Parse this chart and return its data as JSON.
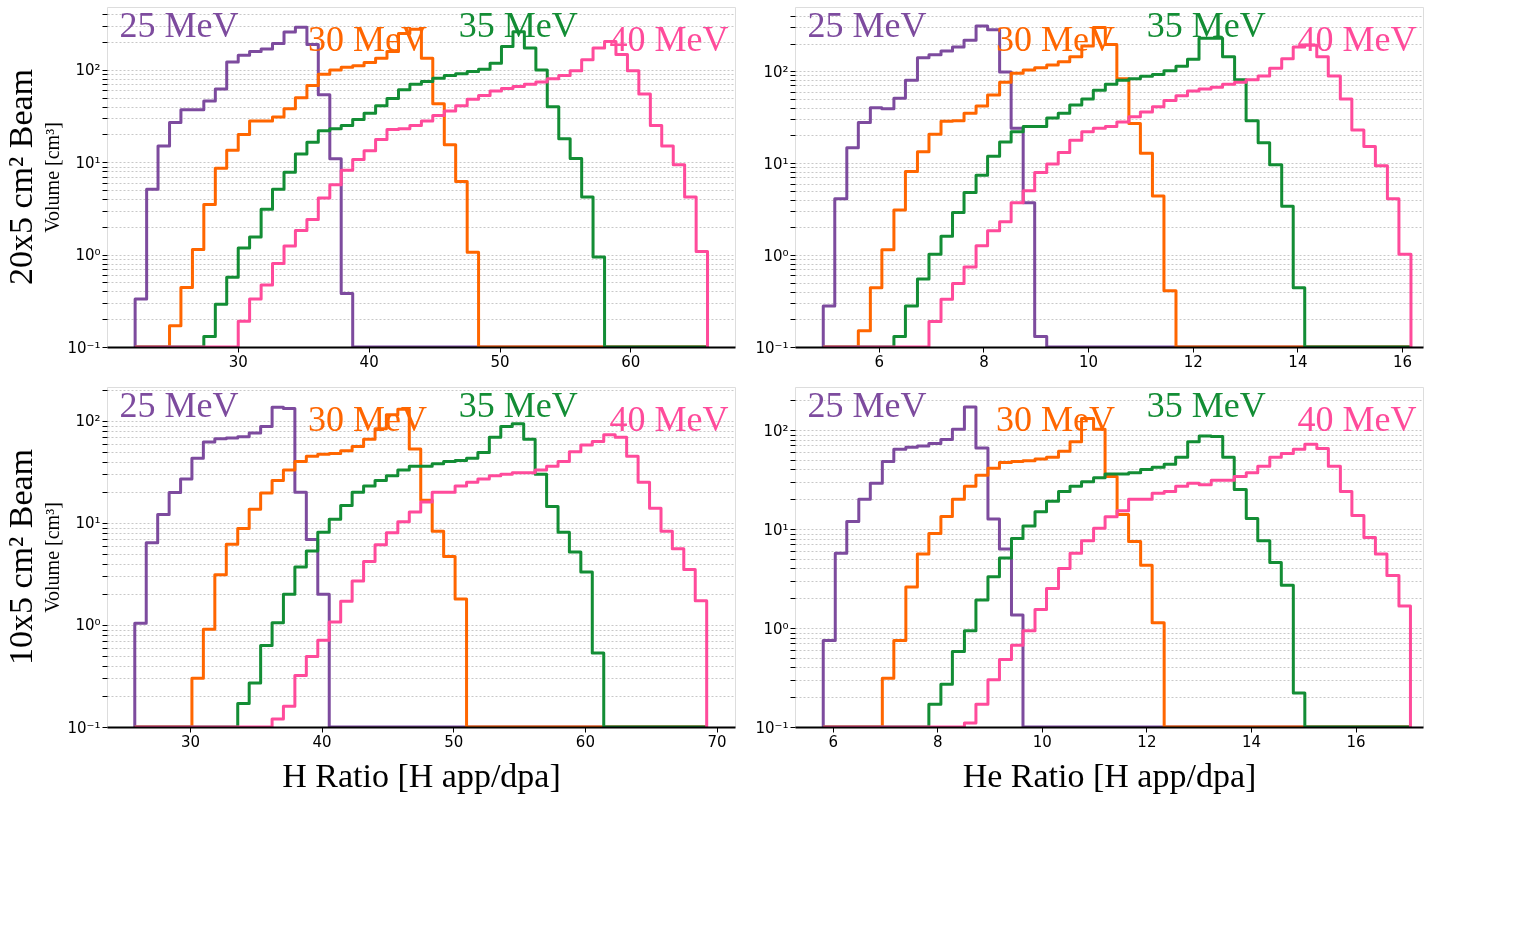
{
  "chart_data": [
    {
      "type": "histogram",
      "title": "20x5 cm² Beam",
      "ylabel": "Volume [cm³]",
      "log": true,
      "grid": "y",
      "line_style": "solid",
      "marker": "none",
      "xlim": [
        20,
        68
      ],
      "xticks": [
        30,
        40,
        50,
        60
      ],
      "ylim": [
        0.1,
        480
      ],
      "yticks": [
        {
          "value": 0.1,
          "label": "10⁻¹"
        },
        {
          "value": 0.2,
          "label": null
        },
        {
          "value": 0.3,
          "label": null
        },
        {
          "value": 0.4,
          "label": null
        },
        {
          "value": 0.5,
          "label": null
        },
        {
          "value": 0.6,
          "label": null
        },
        {
          "value": 0.7,
          "label": null
        },
        {
          "value": 0.8,
          "label": null
        },
        {
          "value": 0.9,
          "label": null
        },
        {
          "value": 1,
          "label": "10⁰"
        },
        {
          "value": 2,
          "label": null
        },
        {
          "value": 3,
          "label": null
        },
        {
          "value": 4,
          "label": null
        },
        {
          "value": 5,
          "label": null
        },
        {
          "value": 6,
          "label": null
        },
        {
          "value": 7,
          "label": null
        },
        {
          "value": 8,
          "label": null
        },
        {
          "value": 9,
          "label": null
        },
        {
          "value": 10,
          "label": "10¹"
        },
        {
          "value": 20,
          "label": null
        },
        {
          "value": 30,
          "label": null
        },
        {
          "value": 40,
          "label": null
        },
        {
          "value": 50,
          "label": null
        },
        {
          "value": 60,
          "label": null
        },
        {
          "value": 70,
          "label": null
        },
        {
          "value": 80,
          "label": null
        },
        {
          "value": 90,
          "label": null
        },
        {
          "value": 100,
          "label": "10²"
        },
        {
          "value": 200,
          "label": null
        },
        {
          "value": 300,
          "label": null
        },
        {
          "value": 400,
          "label": null
        }
      ],
      "bins": [
        22.15,
        23.03,
        23.9,
        24.78,
        25.65,
        26.53,
        27.4,
        28.28,
        29.15,
        30.03,
        30.9,
        31.78,
        32.65,
        33.53,
        34.4,
        35.28,
        36.15,
        37.03,
        37.9,
        38.78,
        39.65,
        40.53,
        41.4,
        42.28,
        43.15,
        44.03,
        44.9,
        45.78,
        46.65,
        47.53,
        48.4,
        49.28,
        50.15,
        51.03,
        51.9,
        52.78,
        53.65,
        54.53,
        55.4,
        56.28,
        57.15,
        58.03,
        58.9,
        59.78,
        60.65,
        61.53,
        62.4,
        63.28,
        64.15,
        65.03,
        65.9
      ],
      "series": [
        {
          "name": "25 MeV",
          "color": "#7d4b9e",
          "values": [
            0.33,
            5.1,
            15,
            27,
            37,
            37,
            46,
            62,
            122,
            144,
            158,
            168,
            193,
            258,
            290,
            189,
            54,
            10.9,
            0.38,
            null,
            null,
            null,
            null,
            null,
            null,
            null,
            null,
            null,
            null,
            null,
            null,
            null,
            null,
            null,
            null,
            null,
            null,
            null,
            null,
            null,
            null,
            null,
            null,
            null,
            null,
            null,
            null,
            null,
            null,
            null
          ]
        },
        {
          "name": "30 MeV",
          "color": "#ff6600",
          "values": [
            null,
            null,
            null,
            0.17,
            0.44,
            1.14,
            3.5,
            8.6,
            13.5,
            20,
            28,
            28,
            31,
            38,
            50,
            68,
            90,
            100,
            107,
            111,
            120,
            134,
            158,
            248,
            276,
            134,
            43,
            15.5,
            6.2,
            1.06,
            null,
            null,
            null,
            null,
            null,
            null,
            null,
            null,
            null,
            null,
            null,
            null,
            null,
            null,
            null,
            null,
            null,
            null,
            null,
            null
          ]
        },
        {
          "name": "35 MeV",
          "color": "#138d35",
          "values": [
            null,
            null,
            null,
            null,
            null,
            null,
            0.13,
            0.29,
            0.57,
            1.18,
            1.55,
            3.1,
            5.1,
            7.8,
            12.3,
            16.5,
            21.9,
            23,
            25,
            29,
            34,
            41,
            49,
            61,
            70,
            75,
            81,
            87,
            91,
            96,
            102,
            118,
            179,
            259,
            173,
            100,
            40,
            18,
            11,
            4.2,
            0.94,
            null,
            null,
            null,
            null,
            null,
            null,
            null,
            null,
            null
          ]
        },
        {
          "name": "40 MeV",
          "color": "#ff4b9b",
          "values": [
            null,
            null,
            null,
            null,
            null,
            null,
            null,
            null,
            null,
            0.19,
            0.33,
            0.47,
            0.8,
            1.24,
            1.82,
            2.4,
            4.1,
            5.7,
            8.2,
            10.7,
            13.3,
            17.7,
            22.7,
            23,
            25,
            28,
            32,
            36,
            41,
            48,
            53,
            59,
            63,
            66,
            70,
            74,
            80,
            87,
            98,
            129,
            173,
            203,
            147,
            98,
            55,
            25,
            15,
            9.4,
            4.2,
            1.08
          ]
        }
      ]
    },
    {
      "type": "histogram",
      "log": true,
      "grid": "y",
      "line_style": "solid",
      "marker": "none",
      "xlim": [
        4.4,
        16.4
      ],
      "xticks": [
        6,
        8,
        10,
        12,
        14,
        16
      ],
      "ylim": [
        0.1,
        500
      ],
      "yticks": [
        {
          "value": 0.1,
          "label": "10⁻¹"
        },
        {
          "value": 0.2,
          "label": null
        },
        {
          "value": 0.3,
          "label": null
        },
        {
          "value": 0.4,
          "label": null
        },
        {
          "value": 0.5,
          "label": null
        },
        {
          "value": 0.6,
          "label": null
        },
        {
          "value": 0.7,
          "label": null
        },
        {
          "value": 0.8,
          "label": null
        },
        {
          "value": 0.9,
          "label": null
        },
        {
          "value": 1,
          "label": "10⁰"
        },
        {
          "value": 2,
          "label": null
        },
        {
          "value": 3,
          "label": null
        },
        {
          "value": 4,
          "label": null
        },
        {
          "value": 5,
          "label": null
        },
        {
          "value": 6,
          "label": null
        },
        {
          "value": 7,
          "label": null
        },
        {
          "value": 8,
          "label": null
        },
        {
          "value": 9,
          "label": null
        },
        {
          "value": 10,
          "label": "10¹"
        },
        {
          "value": 20,
          "label": null
        },
        {
          "value": 30,
          "label": null
        },
        {
          "value": 40,
          "label": null
        },
        {
          "value": 50,
          "label": null
        },
        {
          "value": 60,
          "label": null
        },
        {
          "value": 70,
          "label": null
        },
        {
          "value": 80,
          "label": null
        },
        {
          "value": 90,
          "label": null
        },
        {
          "value": 100,
          "label": "10²"
        },
        {
          "value": 200,
          "label": null
        },
        {
          "value": 300,
          "label": null
        },
        {
          "value": 400,
          "label": null
        }
      ],
      "bins": [
        4.94,
        5.16,
        5.39,
        5.61,
        5.84,
        6.06,
        6.29,
        6.51,
        6.74,
        6.96,
        7.19,
        7.41,
        7.63,
        7.86,
        8.08,
        8.31,
        8.53,
        8.76,
        8.98,
        9.21,
        9.43,
        9.65,
        9.88,
        10.1,
        10.33,
        10.55,
        10.78,
        11.0,
        11.23,
        11.45,
        11.68,
        11.9,
        12.12,
        12.35,
        12.57,
        12.8,
        13.02,
        13.25,
        13.47,
        13.7,
        13.92,
        14.14,
        14.37,
        14.59,
        14.82,
        15.04,
        15.27,
        15.49,
        15.72,
        15.94,
        16.17
      ],
      "series": [
        {
          "name": "25 MeV",
          "color": "#7d4b9e",
          "values": [
            0.28,
            4.1,
            14.7,
            27.7,
            40,
            39,
            51,
            80,
            140,
            151,
            166,
            183,
            217,
            310,
            282,
            98,
            24,
            3.7,
            0.13,
            null,
            null,
            null,
            null,
            null,
            null,
            null,
            null,
            null,
            null,
            null,
            null,
            null,
            null,
            null,
            null,
            null,
            null,
            null,
            null,
            null,
            null,
            null,
            null,
            null,
            null,
            null,
            null,
            null,
            null,
            null
          ]
        },
        {
          "name": "30 MeV",
          "color": "#ff6600",
          "values": [
            null,
            null,
            null,
            0.15,
            0.44,
            1.14,
            3.1,
            8.1,
            13.3,
            20.6,
            28.5,
            29,
            35,
            42,
            55,
            76,
            95,
            103,
            109,
            117,
            127,
            144,
            188,
            300,
            196,
            83,
            27,
            12.8,
            4.4,
            0.41,
            null,
            null,
            null,
            null,
            null,
            null,
            null,
            null,
            null,
            null,
            null,
            null,
            null,
            null,
            null,
            null,
            null,
            null,
            null,
            null
          ]
        },
        {
          "name": "35 MeV",
          "color": "#138d35",
          "values": [
            null,
            null,
            null,
            null,
            null,
            null,
            0.13,
            0.28,
            0.55,
            1.02,
            1.6,
            2.9,
            4.8,
            7.4,
            11.9,
            17,
            22,
            25,
            25,
            31,
            35,
            43,
            50,
            62,
            72,
            80,
            83,
            88,
            92,
            101,
            113,
            135,
            228,
            228,
            144,
            81,
            29,
            16.7,
            9.6,
            3.4,
            0.44,
            null,
            null,
            null,
            null,
            null,
            null,
            null,
            null,
            null
          ]
        },
        {
          "name": "40 MeV",
          "color": "#ff4b9b",
          "values": [
            null,
            null,
            null,
            null,
            null,
            null,
            null,
            null,
            null,
            0.19,
            0.33,
            0.49,
            0.74,
            1.26,
            1.84,
            2.3,
            3.7,
            5.0,
            7.9,
            9.8,
            13.1,
            17.8,
            22,
            24,
            25,
            28,
            32,
            36,
            41,
            48,
            54,
            61,
            64,
            67,
            72,
            76,
            81,
            89,
            108,
            137,
            183,
            192,
            144,
            89,
            50,
            23,
            15.2,
            9.4,
            4.1,
            1.02
          ]
        }
      ]
    },
    {
      "type": "histogram",
      "title": "10x5 cm² Beam",
      "ylabel": "Volume [cm³]",
      "xlabel": "H Ratio [H app/dpa]",
      "log": true,
      "grid": "y",
      "line_style": "solid",
      "marker": "none",
      "xlim": [
        23.7,
        71.4
      ],
      "xticks": [
        30,
        40,
        50,
        60,
        70
      ],
      "ylim": [
        0.1,
        215
      ],
      "yticks": [
        {
          "value": 0.1,
          "label": "10⁻¹"
        },
        {
          "value": 0.2,
          "label": null
        },
        {
          "value": 0.3,
          "label": null
        },
        {
          "value": 0.4,
          "label": null
        },
        {
          "value": 0.5,
          "label": null
        },
        {
          "value": 0.6,
          "label": null
        },
        {
          "value": 0.7,
          "label": null
        },
        {
          "value": 0.8,
          "label": null
        },
        {
          "value": 0.9,
          "label": null
        },
        {
          "value": 1,
          "label": "10⁰"
        },
        {
          "value": 2,
          "label": null
        },
        {
          "value": 3,
          "label": null
        },
        {
          "value": 4,
          "label": null
        },
        {
          "value": 5,
          "label": null
        },
        {
          "value": 6,
          "label": null
        },
        {
          "value": 7,
          "label": null
        },
        {
          "value": 8,
          "label": null
        },
        {
          "value": 9,
          "label": null
        },
        {
          "value": 10,
          "label": "10¹"
        },
        {
          "value": 20,
          "label": null
        },
        {
          "value": 30,
          "label": null
        },
        {
          "value": 40,
          "label": null
        },
        {
          "value": 50,
          "label": null
        },
        {
          "value": 60,
          "label": null
        },
        {
          "value": 70,
          "label": null
        },
        {
          "value": 80,
          "label": null
        },
        {
          "value": 90,
          "label": null
        },
        {
          "value": 100,
          "label": "10²"
        },
        {
          "value": 200,
          "label": null
        }
      ],
      "bins": [
        25.81,
        26.68,
        27.55,
        28.42,
        29.29,
        30.15,
        31.02,
        31.89,
        32.76,
        33.63,
        34.5,
        35.37,
        36.24,
        37.1,
        37.97,
        38.84,
        39.71,
        40.58,
        41.45,
        42.32,
        43.19,
        44.06,
        44.92,
        45.79,
        46.66,
        47.53,
        48.4,
        49.27,
        50.14,
        51.01,
        51.87,
        52.74,
        53.61,
        54.48,
        55.35,
        56.22,
        57.09,
        57.96,
        58.82,
        59.69,
        60.56,
        61.43,
        62.3,
        63.17,
        64.04,
        64.91,
        65.78,
        66.64,
        67.51,
        68.38,
        69.25
      ],
      "series": [
        {
          "name": "25 MeV",
          "color": "#7d4b9e",
          "values": [
            1.04,
            6.4,
            12.1,
            19.9,
            27,
            43,
            62,
            67,
            68,
            70,
            76,
            88,
            136,
            132,
            20,
            6.9,
            2.0,
            null,
            null,
            null,
            null,
            null,
            null,
            null,
            null,
            null,
            null,
            null,
            null,
            null,
            null,
            null,
            null,
            null,
            null,
            null,
            null,
            null,
            null,
            null,
            null,
            null,
            null,
            null,
            null,
            null,
            null,
            null,
            null,
            null
          ]
        },
        {
          "name": "30 MeV",
          "color": "#ff6600",
          "values": [
            null,
            null,
            null,
            null,
            null,
            0.3,
            0.91,
            3.1,
            6.2,
            8.8,
            13.6,
            19.7,
            26,
            33,
            40,
            45,
            47,
            48,
            51,
            56,
            66,
            84,
            115,
            130,
            53,
            16.7,
            8.3,
            4.7,
            1.8,
            null,
            null,
            null,
            null,
            null,
            null,
            null,
            null,
            null,
            null,
            null,
            null,
            null,
            null,
            null,
            null,
            null,
            null,
            null,
            null,
            null
          ]
        },
        {
          "name": "35 MeV",
          "color": "#138d35",
          "values": [
            null,
            null,
            null,
            null,
            null,
            null,
            null,
            null,
            null,
            0.17,
            0.27,
            0.63,
            1.05,
            2.0,
            3.7,
            5.3,
            8.1,
            10.9,
            14.8,
            20,
            23,
            26,
            29,
            33,
            36,
            36,
            38,
            40,
            41,
            43,
            49,
            69,
            88,
            94,
            66,
            30,
            14.5,
            8.1,
            5.2,
            3.3,
            0.53,
            null,
            null,
            null,
            null,
            null,
            null,
            null,
            null,
            null
          ]
        },
        {
          "name": "40 MeV",
          "color": "#ff4b9b",
          "values": [
            null,
            null,
            null,
            null,
            null,
            null,
            null,
            null,
            null,
            null,
            null,
            null,
            0.12,
            0.16,
            0.32,
            0.49,
            0.71,
            1.07,
            1.71,
            2.7,
            4.2,
            6.1,
            8.0,
            10.3,
            12.8,
            16,
            20,
            20,
            23,
            25,
            27,
            29,
            30,
            31,
            31,
            33,
            36,
            40,
            50,
            58,
            63,
            73,
            69,
            45,
            25,
            13.9,
            8.3,
            5.6,
            3.5,
            1.73
          ]
        }
      ]
    },
    {
      "type": "histogram",
      "xlabel": "He Ratio [H app/dpa]",
      "log": true,
      "grid": "y",
      "line_style": "solid",
      "marker": "none",
      "xlim": [
        5.28,
        17.29
      ],
      "xticks": [
        6,
        8,
        10,
        12,
        14,
        16
      ],
      "ylim": [
        0.1,
        272
      ],
      "yticks": [
        {
          "value": 0.1,
          "label": "10⁻¹"
        },
        {
          "value": 0.2,
          "label": null
        },
        {
          "value": 0.3,
          "label": null
        },
        {
          "value": 0.4,
          "label": null
        },
        {
          "value": 0.5,
          "label": null
        },
        {
          "value": 0.6,
          "label": null
        },
        {
          "value": 0.7,
          "label": null
        },
        {
          "value": 0.8,
          "label": null
        },
        {
          "value": 0.9,
          "label": null
        },
        {
          "value": 1,
          "label": "10⁰"
        },
        {
          "value": 2,
          "label": null
        },
        {
          "value": 3,
          "label": null
        },
        {
          "value": 4,
          "label": null
        },
        {
          "value": 5,
          "label": null
        },
        {
          "value": 6,
          "label": null
        },
        {
          "value": 7,
          "label": null
        },
        {
          "value": 8,
          "label": null
        },
        {
          "value": 9,
          "label": null
        },
        {
          "value": 10,
          "label": "10¹"
        },
        {
          "value": 20,
          "label": null
        },
        {
          "value": 30,
          "label": null
        },
        {
          "value": 40,
          "label": null
        },
        {
          "value": 50,
          "label": null
        },
        {
          "value": 60,
          "label": null
        },
        {
          "value": 70,
          "label": null
        },
        {
          "value": 80,
          "label": null
        },
        {
          "value": 90,
          "label": null
        },
        {
          "value": 100,
          "label": "10²"
        },
        {
          "value": 200,
          "label": null
        }
      ],
      "bins": [
        5.82,
        6.05,
        6.27,
        6.5,
        6.72,
        6.95,
        7.17,
        7.4,
        7.62,
        7.84,
        8.07,
        8.29,
        8.52,
        8.74,
        8.97,
        9.19,
        9.42,
        9.64,
        9.87,
        10.09,
        10.32,
        10.54,
        10.76,
        10.99,
        11.21,
        11.44,
        11.66,
        11.89,
        12.11,
        12.34,
        12.56,
        12.79,
        13.01,
        13.24,
        13.46,
        13.68,
        13.91,
        14.13,
        14.36,
        14.58,
        14.81,
        15.03,
        15.26,
        15.48,
        15.71,
        15.93,
        16.16,
        16.38,
        16.6,
        16.83,
        17.05
      ],
      "series": [
        {
          "name": "25 MeV",
          "color": "#7d4b9e",
          "values": [
            0.75,
            5.7,
            11.9,
            20,
            29,
            48,
            64,
            67,
            69,
            73,
            80,
            102,
            171,
            66,
            12.6,
            6.3,
            1.35,
            null,
            null,
            null,
            null,
            null,
            null,
            null,
            null,
            null,
            null,
            null,
            null,
            null,
            null,
            null,
            null,
            null,
            null,
            null,
            null,
            null,
            null,
            null,
            null,
            null,
            null,
            null,
            null,
            null,
            null,
            null,
            null,
            null
          ]
        },
        {
          "name": "30 MeV",
          "color": "#ff6600",
          "values": [
            null,
            null,
            null,
            null,
            null,
            0.31,
            0.75,
            2.6,
            5.6,
            9.0,
            13.4,
            20,
            27,
            35,
            41,
            47,
            48,
            49,
            51,
            53,
            61,
            76,
            131,
            102,
            34,
            14,
            7.5,
            4.3,
            1.13,
            null,
            null,
            null,
            null,
            null,
            null,
            null,
            null,
            null,
            null,
            null,
            null,
            null,
            null,
            null,
            null,
            null,
            null,
            null,
            null,
            null
          ]
        },
        {
          "name": "35 MeV",
          "color": "#138d35",
          "values": [
            null,
            null,
            null,
            null,
            null,
            null,
            null,
            null,
            null,
            0.17,
            0.27,
            0.58,
            0.94,
            1.92,
            3.3,
            5.1,
            8.0,
            10.7,
            14.9,
            19.1,
            24,
            27,
            30,
            33,
            36,
            36,
            37,
            40,
            42,
            45,
            53,
            76,
            87,
            86,
            53,
            25,
            12.8,
            7.6,
            4.6,
            2.7,
            0.22,
            null,
            null,
            null,
            null,
            null,
            null,
            null,
            null,
            null
          ]
        },
        {
          "name": "40 MeV",
          "color": "#ff4b9b",
          "values": [
            null,
            null,
            null,
            null,
            null,
            null,
            null,
            null,
            null,
            null,
            null,
            null,
            0.11,
            0.17,
            0.3,
            0.48,
            0.67,
            0.94,
            1.54,
            2.5,
            4.0,
            5.7,
            7.6,
            10.2,
            13.3,
            15.3,
            20,
            20,
            23,
            24,
            27,
            29,
            28,
            31,
            31,
            34,
            37,
            43,
            53,
            58,
            64,
            72,
            65,
            43,
            24,
            13.7,
            8.2,
            5.6,
            3.4,
            1.67
          ]
        }
      ]
    }
  ]
}
